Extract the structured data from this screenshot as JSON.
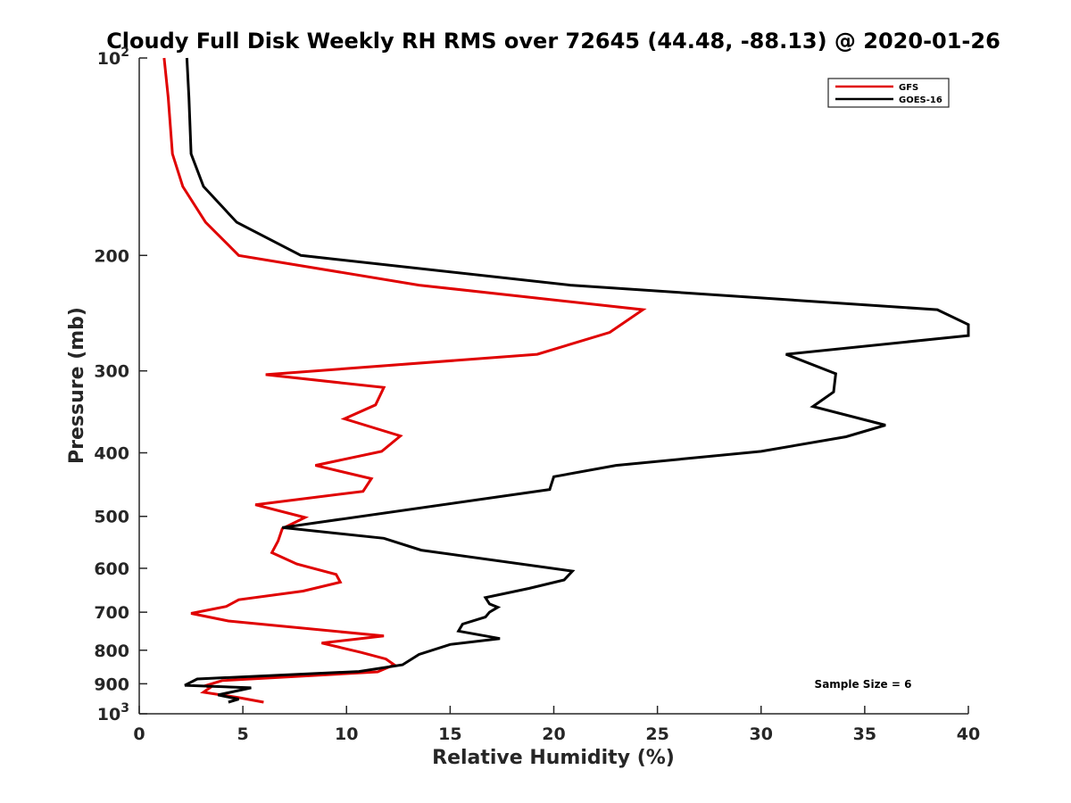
{
  "chart_data": {
    "type": "line",
    "title": "Cloudy Full Disk Weekly RH RMS over 72645 (44.48, -88.13) @ 2020-01-26",
    "xlabel": "Relative Humidity (%)",
    "ylabel": "Pressure (mb)",
    "xlim": [
      0,
      40
    ],
    "ylim": [
      100,
      1000
    ],
    "y_scale": "log",
    "y_reversed": true,
    "x_ticks": [
      "0",
      "5",
      "10",
      "15",
      "20",
      "25",
      "30",
      "35",
      "40"
    ],
    "y_ticks": [
      {
        "value": 100,
        "base": "10",
        "exp": "2"
      },
      {
        "value": 200,
        "label": "200"
      },
      {
        "value": 300,
        "label": "300"
      },
      {
        "value": 400,
        "label": "400"
      },
      {
        "value": 500,
        "label": "500"
      },
      {
        "value": 600,
        "label": "600"
      },
      {
        "value": 700,
        "label": "700"
      },
      {
        "value": 800,
        "label": "800"
      },
      {
        "value": 900,
        "label": "900"
      },
      {
        "value": 1000,
        "base": "10",
        "exp": "3"
      }
    ],
    "grid": false,
    "legend_position": "top-right",
    "annotation": "Sample Size = 6",
    "series": [
      {
        "name": "GFS",
        "color": "#e00000",
        "x": [
          1.2,
          1.4,
          1.6,
          2.1,
          3.2,
          4.8,
          13.5,
          24.3,
          22.7,
          19.2,
          6.1,
          11.8,
          11.4,
          9.9,
          12.6,
          11.7,
          8.5,
          11.2,
          10.8,
          5.6,
          8.0,
          6.9,
          6.7,
          6.4,
          7.6,
          9.5,
          9.7,
          7.9,
          4.8,
          4.2,
          2.5,
          4.3,
          11.8,
          8.8,
          10.7,
          11.9,
          12.3,
          11.5,
          4.0,
          3.2,
          3.4,
          3.1,
          4.8,
          6.0
        ],
        "y": [
          100,
          115,
          140,
          157,
          178,
          200,
          222,
          242,
          262,
          283,
          304,
          318,
          338,
          355,
          377,
          398,
          418,
          438,
          458,
          480,
          502,
          522,
          545,
          568,
          591,
          613,
          630,
          650,
          670,
          686,
          703,
          722,
          761,
          780,
          806,
          825,
          842,
          863,
          890,
          906,
          913,
          927,
          945,
          960
        ]
      },
      {
        "name": "GOES-16",
        "color": "#000000",
        "x": [
          2.3,
          2.4,
          2.5,
          3.1,
          4.7,
          7.8,
          20.8,
          38.5,
          40.0,
          40.0,
          31.2,
          33.6,
          33.5,
          32.5,
          36.0,
          34.1,
          30.0,
          23.0,
          20.0,
          19.8,
          6.9,
          11.8,
          13.6,
          20.9,
          20.5,
          18.8,
          16.7,
          16.9,
          17.3,
          16.9,
          16.7,
          15.6,
          15.4,
          17.4,
          15.0,
          13.5,
          12.7,
          10.6,
          2.8,
          2.2,
          5.4,
          3.8,
          4.8,
          4.3
        ],
        "y": [
          100,
          115,
          140,
          157,
          178,
          200,
          222,
          242,
          255,
          265,
          283,
          303,
          323,
          340,
          363,
          378,
          398,
          418,
          435,
          455,
          520,
          540,
          563,
          606,
          625,
          644,
          665,
          680,
          688,
          700,
          712,
          730,
          748,
          768,
          784,
          812,
          842,
          862,
          885,
          905,
          913,
          936,
          950,
          960
        ]
      }
    ]
  }
}
